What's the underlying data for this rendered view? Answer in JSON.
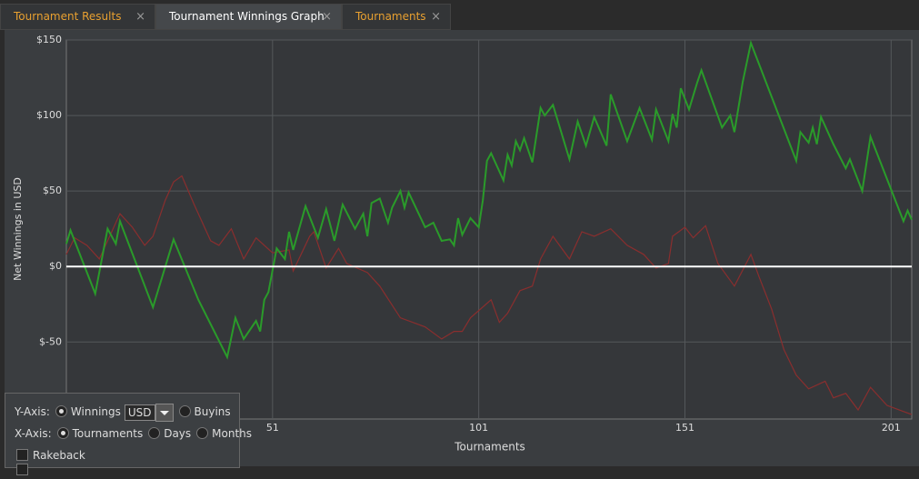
{
  "tabs": [
    {
      "label": "Tournament Results",
      "active": false
    },
    {
      "label": "Tournament Winnings Graph",
      "active": true
    },
    {
      "label": "Tournaments",
      "active": false
    }
  ],
  "chart_data": {
    "type": "line",
    "ylabel": "Net Winnings in USD",
    "xlabel": "Tournaments",
    "xlim": [
      1,
      206
    ],
    "xticks": [
      51,
      101,
      151,
      201
    ],
    "ylim": [
      -101,
      150
    ],
    "yticks": [
      {
        "value": 150,
        "label": "$150"
      },
      {
        "value": 100,
        "label": "$100"
      },
      {
        "value": 50,
        "label": "$50"
      },
      {
        "value": 0,
        "label": "$0"
      },
      {
        "value": -50,
        "label": "$-50"
      }
    ],
    "grid": true,
    "series": [
      {
        "color": "#2a9b2a",
        "x": [
          1,
          2,
          8,
          11,
          13,
          14,
          22,
          27,
          33,
          40,
          42,
          44,
          47,
          48,
          49,
          50,
          52,
          54,
          55,
          56,
          59,
          62,
          64,
          66,
          68,
          71,
          73,
          74,
          75,
          77,
          79,
          80,
          82,
          83,
          84,
          88,
          90,
          92,
          94,
          95,
          96,
          97,
          99,
          101,
          102,
          103,
          104,
          107,
          108,
          109,
          110,
          111,
          112,
          114,
          116,
          117,
          119,
          123,
          125,
          127,
          129,
          132,
          133,
          137,
          140,
          143,
          144,
          147,
          148,
          149,
          150,
          152,
          154,
          155,
          160,
          162,
          163,
          165,
          167,
          178,
          179,
          181,
          182,
          183,
          184,
          187,
          190,
          191,
          194,
          196,
          204,
          205,
          206
        ],
        "values": [
          15,
          24,
          -18,
          25,
          15,
          30,
          -27,
          18,
          -22,
          -60,
          -34,
          -48,
          -36,
          -43,
          -22,
          -17,
          12,
          5,
          23,
          11,
          40,
          19,
          38,
          17,
          41,
          25,
          35,
          20,
          42,
          45,
          29,
          39,
          50,
          39,
          49,
          26,
          29,
          17,
          18,
          14,
          32,
          21,
          32,
          26,
          44,
          70,
          75,
          57,
          74,
          67,
          83,
          77,
          85,
          69,
          105,
          100,
          107,
          71,
          96,
          80,
          99,
          80,
          114,
          83,
          105,
          84,
          104,
          83,
          101,
          92,
          118,
          104,
          122,
          130,
          92,
          100,
          89,
          122,
          148,
          70,
          89,
          82,
          92,
          81,
          99,
          81,
          65,
          71,
          50,
          86,
          30,
          37,
          31
        ]
      },
      {
        "color": "#8a2e2e",
        "x": [
          1,
          3,
          6,
          9,
          11,
          14,
          17,
          20,
          22,
          25,
          27,
          29,
          32,
          36,
          38,
          41,
          44,
          47,
          51,
          55,
          56,
          60,
          61,
          64,
          67,
          69,
          74,
          77,
          82,
          88,
          92,
          95,
          97,
          99,
          104,
          106,
          108,
          111,
          114,
          116,
          119,
          123,
          126,
          129,
          133,
          137,
          141,
          144,
          147,
          148,
          151,
          153,
          156,
          159,
          163,
          167,
          169,
          172,
          175,
          178,
          181,
          185,
          187,
          190,
          193,
          196,
          200,
          203,
          206
        ],
        "values": [
          8,
          19,
          14,
          5,
          17,
          35,
          26,
          14,
          20,
          44,
          56,
          60,
          41,
          17,
          14,
          25,
          5,
          19,
          9,
          11,
          -3,
          20,
          23,
          -1,
          12,
          2,
          -4,
          -13,
          -34,
          -40,
          -48,
          -43,
          -43,
          -34,
          -22,
          -37,
          -31,
          -16,
          -13,
          5,
          20,
          5,
          23,
          20,
          25,
          14,
          8,
          -1,
          2,
          20,
          26,
          19,
          27,
          2,
          -13,
          8,
          -7,
          -28,
          -55,
          -72,
          -81,
          -76,
          -87,
          -84,
          -95,
          -80,
          -92,
          -95,
          -98
        ]
      }
    ]
  },
  "controls": {
    "y_axis": {
      "label": "Y-Axis:",
      "options": [
        "Winnings",
        "Buyins"
      ],
      "currency": "USD"
    },
    "x_axis": {
      "label": "X-Axis:",
      "options": [
        "Tournaments",
        "Days",
        "Months"
      ]
    },
    "checkboxes": [
      "Rakeback"
    ]
  }
}
